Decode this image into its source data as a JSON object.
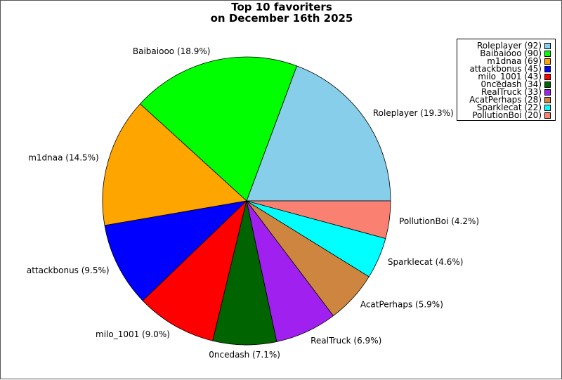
{
  "chart_data": {
    "type": "pie",
    "title": "Top 10 favoriters",
    "subtitle": "on December 16th 2025",
    "legend_position": "top-right",
    "slices": [
      {
        "label": "Roleplayer",
        "value": 92,
        "percent_label": "Roleplayer (19.3%)",
        "legend_label": "Roleplayer (92)",
        "color": "#87CEEB"
      },
      {
        "label": "Baibaiooo",
        "value": 90,
        "percent_label": "Baibaiooo (18.9%)",
        "legend_label": "Baibaiooo (90)",
        "color": "#00FF00"
      },
      {
        "label": "m1dnaa",
        "value": 69,
        "percent_label": "m1dnaa (14.5%)",
        "legend_label": "m1dnaa (69)",
        "color": "#FFA500"
      },
      {
        "label": "attackbonus",
        "value": 45,
        "percent_label": "attackbonus (9.5%)",
        "legend_label": "attackbonus (45)",
        "color": "#0000FF"
      },
      {
        "label": "milo_1001",
        "value": 43,
        "percent_label": "milo_1001 (9.0%)",
        "legend_label": "milo_1001 (43)",
        "color": "#FF0000"
      },
      {
        "label": "0ncedash",
        "value": 34,
        "percent_label": "0ncedash (7.1%)",
        "legend_label": "0ncedash (34)",
        "color": "#006400"
      },
      {
        "label": "RealTruck",
        "value": 33,
        "percent_label": "RealTruck (6.9%)",
        "legend_label": "RealTruck (33)",
        "color": "#A020F0"
      },
      {
        "label": "AcatPerhaps",
        "value": 28,
        "percent_label": "AcatPerhaps (5.9%)",
        "legend_label": "AcatPerhaps (28)",
        "color": "#CD853F"
      },
      {
        "label": "Sparklecat",
        "value": 22,
        "percent_label": "Sparklecat (4.6%)",
        "legend_label": "Sparklecat (22)",
        "color": "#00FFFF"
      },
      {
        "label": "PollutionBoi",
        "value": 20,
        "percent_label": "PollutionBoi (4.2%)",
        "legend_label": "PollutionBoi (20)",
        "color": "#FA8072"
      }
    ]
  }
}
